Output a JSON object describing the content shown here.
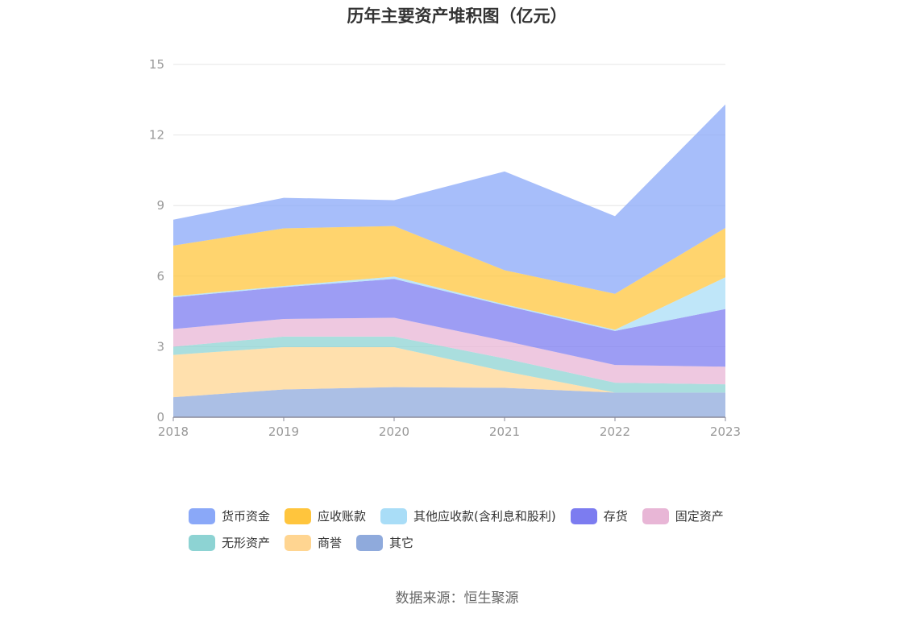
{
  "chart_data": {
    "type": "area",
    "stacked": true,
    "title": "历年主要资产堆积图（亿元）",
    "x": [
      "2018",
      "2019",
      "2020",
      "2021",
      "2022",
      "2023"
    ],
    "ylim": [
      0,
      15
    ],
    "yticks": [
      0,
      3,
      6,
      9,
      12,
      15
    ],
    "grid": true,
    "legend_position": "bottom",
    "series": [
      {
        "name": "其它",
        "color": "#8faadc",
        "values": [
          0.85,
          1.18,
          1.28,
          1.25,
          1.05,
          1.05
        ]
      },
      {
        "name": "商誉",
        "color": "#ffd591",
        "values": [
          1.8,
          1.8,
          1.7,
          0.7,
          0.0,
          0.0
        ]
      },
      {
        "name": "无形资产",
        "color": "#8dd3d3",
        "values": [
          0.35,
          0.45,
          0.45,
          0.55,
          0.42,
          0.35
        ]
      },
      {
        "name": "固定资产",
        "color": "#e8b6d6",
        "values": [
          0.75,
          0.75,
          0.8,
          0.75,
          0.75,
          0.75
        ]
      },
      {
        "name": "存货",
        "color": "#7c7cf0",
        "values": [
          1.35,
          1.35,
          1.65,
          1.5,
          1.45,
          2.45
        ]
      },
      {
        "name": "其他应收款(含利息和股利)",
        "color": "#a9ddf7",
        "values": [
          0.05,
          0.05,
          0.1,
          0.05,
          0.05,
          1.35
        ]
      },
      {
        "name": "应收账款",
        "color": "#ffc53d",
        "values": [
          2.15,
          2.45,
          2.15,
          1.45,
          1.53,
          2.1
        ]
      },
      {
        "name": "货币资金",
        "color": "#8aa8f8",
        "values": [
          1.1,
          1.3,
          1.1,
          4.2,
          3.3,
          5.25
        ]
      }
    ]
  },
  "legend": {
    "items": [
      {
        "label": "货币资金",
        "color": "#8aa8f8"
      },
      {
        "label": "应收账款",
        "color": "#ffc53d"
      },
      {
        "label": "其他应收款(含利息和股利)",
        "color": "#a9ddf7"
      },
      {
        "label": "存货",
        "color": "#7c7cf0"
      },
      {
        "label": "固定资产",
        "color": "#e8b6d6"
      },
      {
        "label": "无形资产",
        "color": "#8dd3d3"
      },
      {
        "label": "商誉",
        "color": "#ffd591"
      },
      {
        "label": "其它",
        "color": "#8faadc"
      }
    ]
  },
  "source": "数据来源：恒生聚源"
}
